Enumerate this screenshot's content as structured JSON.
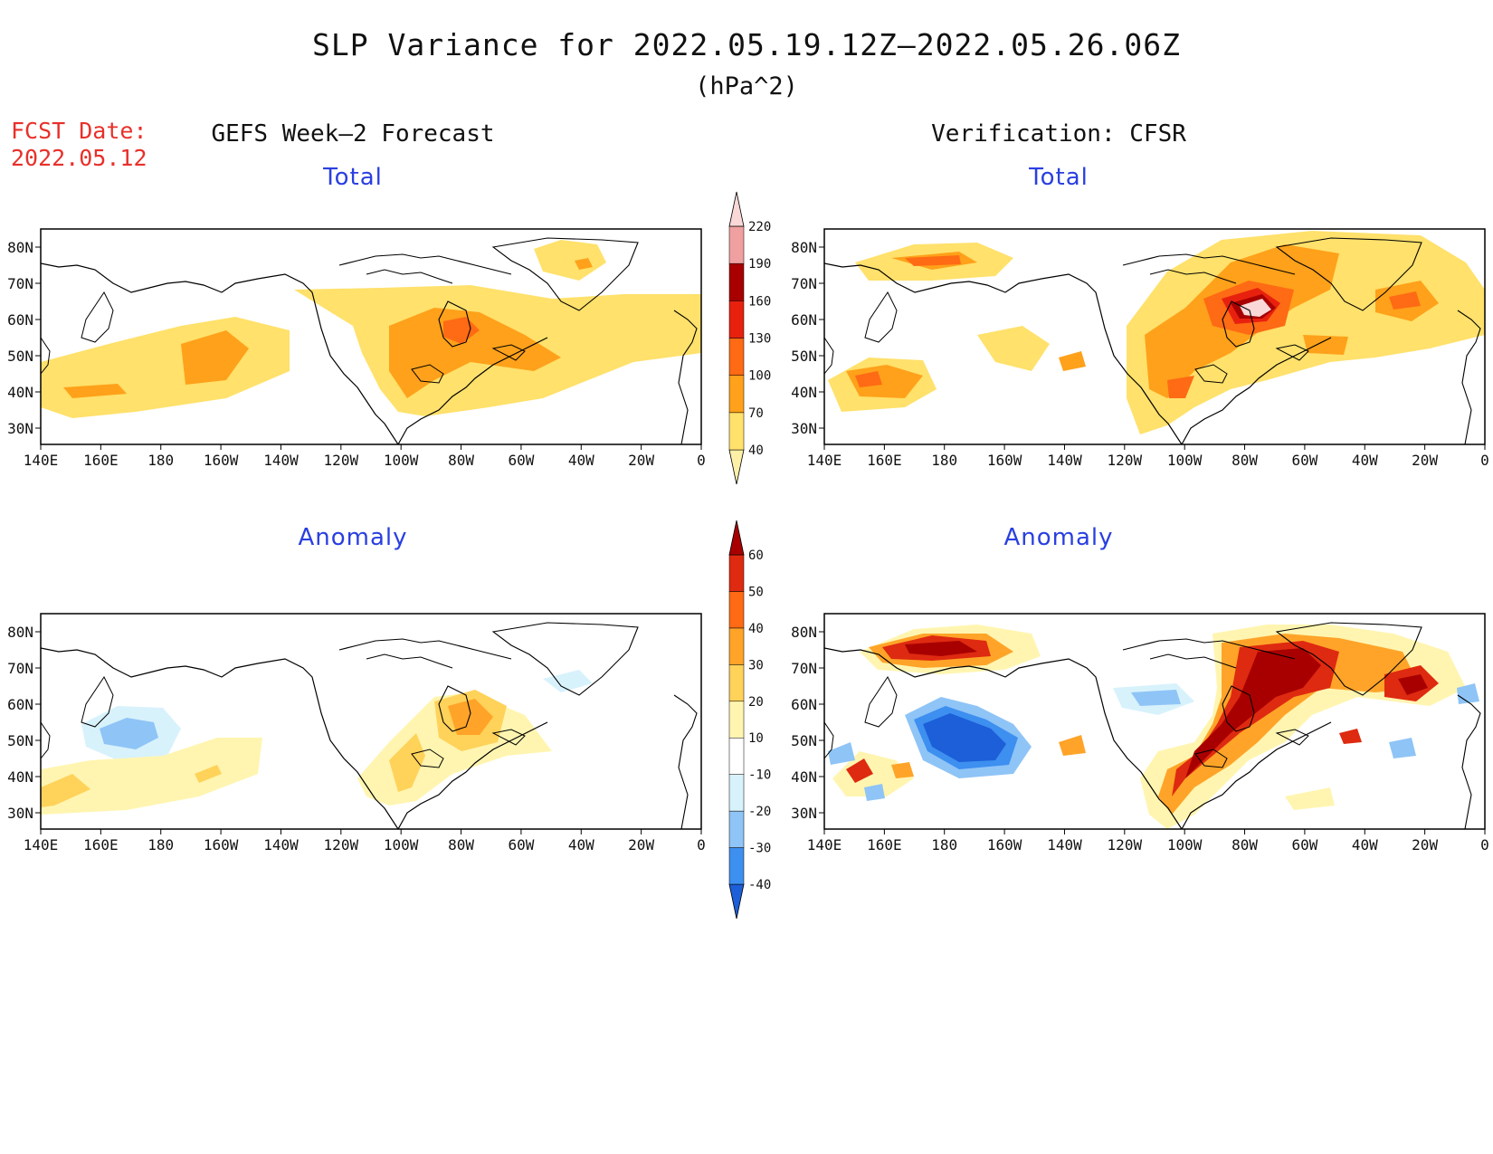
{
  "title": "SLP Variance for 2022.05.19.12Z–2022.05.26.06Z",
  "units": "(hPa^2)",
  "fcst_date_label": "FCST Date:",
  "fcst_date_value": "2022.05.12",
  "left_column_title": "GEFS Week–2 Forecast",
  "right_column_title": "Verification: CFSR",
  "panels": {
    "top_left": "Total",
    "top_right": "Total",
    "bottom_left": "Anomaly",
    "bottom_right": "Anomaly"
  },
  "lon_labels": [
    "140E",
    "160E",
    "180",
    "160W",
    "140W",
    "120W",
    "100W",
    "80W",
    "60W",
    "40W",
    "20W",
    "0"
  ],
  "lat_labels": [
    "80N",
    "70N",
    "60N",
    "50N",
    "40N",
    "30N"
  ],
  "total_colorbar": {
    "levels": [
      "40",
      "70",
      "100",
      "130",
      "160",
      "190",
      "220"
    ],
    "colors": [
      "#fff0a8",
      "#ffe16b",
      "#ffa11a",
      "#ff6a14",
      "#e8210f",
      "#a80000",
      "#f0a0a0",
      "#fbd8d8"
    ]
  },
  "anomaly_colorbar": {
    "levels": [
      "-40",
      "-30",
      "-20",
      "-10",
      "10",
      "20",
      "30",
      "40",
      "50",
      "60"
    ],
    "colors": [
      "#1c5fd8",
      "#3d8ff0",
      "#8fc4f6",
      "#d8f2fc",
      "#ffffff",
      "#fff5b0",
      "#ffd25a",
      "#ffa428",
      "#ff6a14",
      "#de2a10",
      "#a80000"
    ]
  }
}
